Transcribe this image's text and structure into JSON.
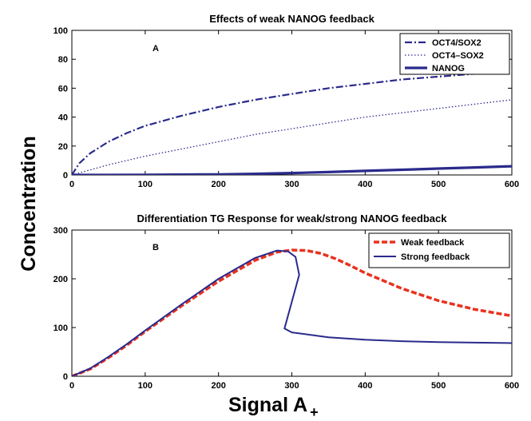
{
  "ylabel": "Concentration",
  "xlabel": "Signal A",
  "xlabel_sub": "+",
  "chart_data": [
    {
      "type": "line",
      "panel_label": "A",
      "title": "Effects of weak NANOG feedback",
      "xlim": [
        0,
        600
      ],
      "ylim": [
        0,
        100
      ],
      "xticks": [
        "0",
        "100",
        "200",
        "300",
        "400",
        "500",
        "600"
      ],
      "yticks": [
        "0",
        "20",
        "40",
        "60",
        "80",
        "100"
      ],
      "legend_position": "top-right",
      "series": [
        {
          "name": "OCT4/SOX2",
          "style": "dashdot",
          "color": "#2a2a8c",
          "x": [
            0,
            10,
            25,
            50,
            75,
            100,
            150,
            200,
            250,
            300,
            350,
            400,
            450,
            500,
            550,
            600
          ],
          "y": [
            0,
            8,
            15,
            23,
            29,
            34,
            41,
            47,
            52,
            56,
            60,
            63,
            66,
            68,
            70,
            72
          ]
        },
        {
          "name": "OCT4–SOX2",
          "style": "dotted",
          "color": "#2a2a8c",
          "x": [
            0,
            50,
            100,
            150,
            200,
            250,
            300,
            350,
            400,
            450,
            500,
            550,
            600
          ],
          "y": [
            0,
            7,
            13,
            18,
            23,
            28,
            32,
            36,
            40,
            43,
            46,
            49,
            52
          ]
        },
        {
          "name": "NANOG",
          "style": "solid-thick",
          "color": "#2a2a8c",
          "x": [
            0,
            100,
            200,
            250,
            300,
            350,
            400,
            450,
            500,
            550,
            600
          ],
          "y": [
            0,
            0.1,
            0.4,
            0.8,
            1.3,
            2.0,
            2.8,
            3.6,
            4.4,
            5.2,
            6.0
          ]
        }
      ]
    },
    {
      "type": "line",
      "panel_label": "B",
      "title": "Differentiation TG Response for weak/strong NANOG feedback",
      "xlim": [
        0,
        600
      ],
      "ylim": [
        0,
        300
      ],
      "xticks": [
        "0",
        "100",
        "200",
        "300",
        "400",
        "500",
        "600"
      ],
      "yticks": [
        "0",
        "100",
        "200",
        "300"
      ],
      "legend_position": "top-right",
      "series": [
        {
          "name": "Weak feedback",
          "style": "dashed-thick",
          "color": "#e8321f",
          "x": [
            0,
            25,
            50,
            75,
            100,
            150,
            200,
            250,
            280,
            300,
            320,
            340,
            360,
            380,
            400,
            450,
            500,
            550,
            600
          ],
          "y": [
            0,
            15,
            38,
            64,
            92,
            145,
            195,
            238,
            255,
            259,
            258,
            252,
            241,
            227,
            212,
            180,
            155,
            137,
            124
          ]
        },
        {
          "name": "Strong feedback",
          "style": "solid",
          "color": "#2a2a8c",
          "x": [
            0,
            25,
            50,
            75,
            100,
            150,
            200,
            250,
            280,
            295,
            305,
            310,
            290,
            300,
            350,
            400,
            450,
            500,
            550,
            600
          ],
          "y": [
            0,
            16,
            40,
            66,
            94,
            148,
            200,
            243,
            258,
            256,
            245,
            208,
            98,
            90,
            80,
            75,
            72,
            70,
            69,
            68
          ]
        }
      ]
    }
  ]
}
